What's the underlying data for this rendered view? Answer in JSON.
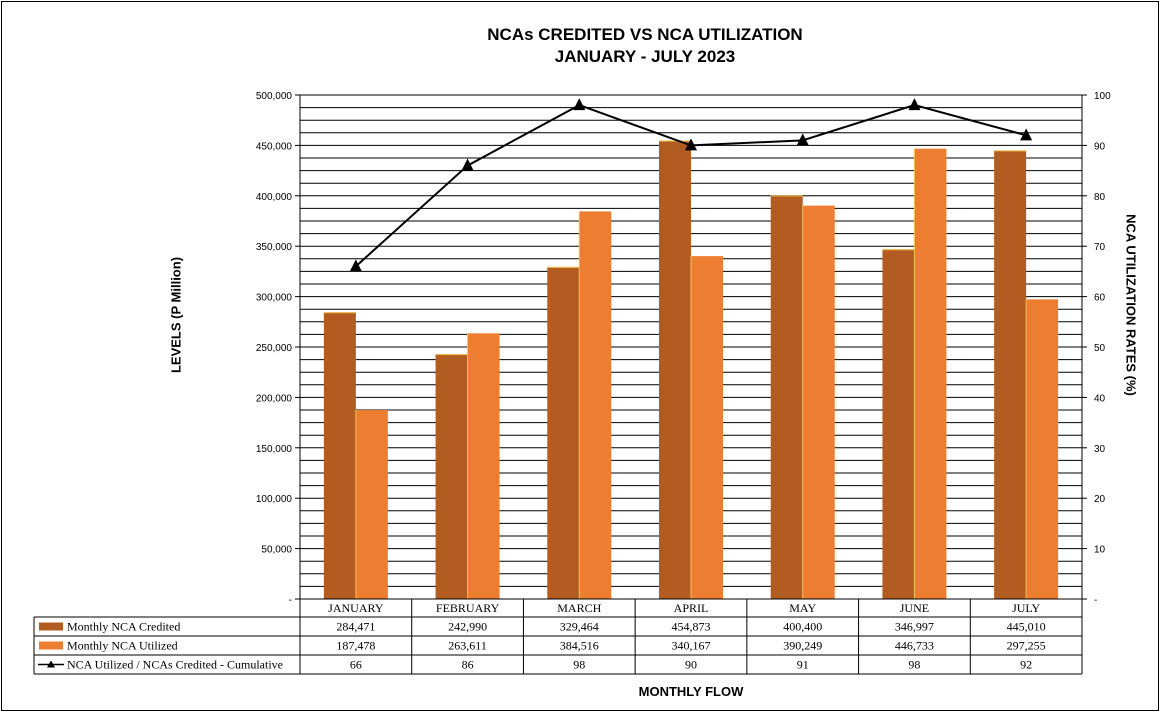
{
  "chart_data": {
    "type": "bar",
    "title": "NCAs CREDITED VS NCA UTILIZATION",
    "subtitle": "JANUARY  - JULY 2023",
    "xlabel": "MONTHLY  FLOW",
    "ylabel": "LEVELS  (P Million)",
    "y2label": "NCA UTILIZATION RATES  (%)",
    "categories": [
      "JANUARY",
      "FEBRUARY",
      "MARCH",
      "APRIL",
      "MAY",
      "JUNE",
      "JULY"
    ],
    "ylim": [
      0,
      500000
    ],
    "y2lim": [
      0,
      100
    ],
    "y_ticks": [
      "-",
      "50,000",
      "100,000",
      "150,000",
      "200,000",
      "250,000",
      "300,000",
      "350,000",
      "400,000",
      "450,000",
      "500,000"
    ],
    "y2_ticks": [
      "-",
      "10",
      "20",
      "30",
      "40",
      "50",
      "60",
      "70",
      "80",
      "90",
      "100"
    ],
    "grid": true,
    "series": [
      {
        "name": "Monthly NCA Credited",
        "type": "bar",
        "color": "#B35C22",
        "values": [
          284471,
          242990,
          329464,
          454873,
          400400,
          346997,
          445010
        ],
        "labels": [
          "284,471",
          "242,990",
          "329,464",
          "454,873",
          "400,400",
          "346,997",
          "445,010"
        ]
      },
      {
        "name": "Monthly NCA Utilized",
        "type": "bar",
        "color": "#ED7D31",
        "values": [
          187478,
          263611,
          384516,
          340167,
          390249,
          446733,
          297255
        ],
        "labels": [
          "187,478",
          "263,611",
          "384,516",
          "340,167",
          "390,249",
          "446,733",
          "297,255"
        ]
      },
      {
        "name": "NCA Utilized / NCAs Credited - Cumulative",
        "type": "line",
        "axis": "right",
        "color": "#000000",
        "values": [
          66,
          86,
          98,
          90,
          91,
          98,
          92
        ],
        "labels": [
          "66",
          "86",
          "98",
          "90",
          "91",
          "98",
          "92"
        ]
      }
    ]
  }
}
